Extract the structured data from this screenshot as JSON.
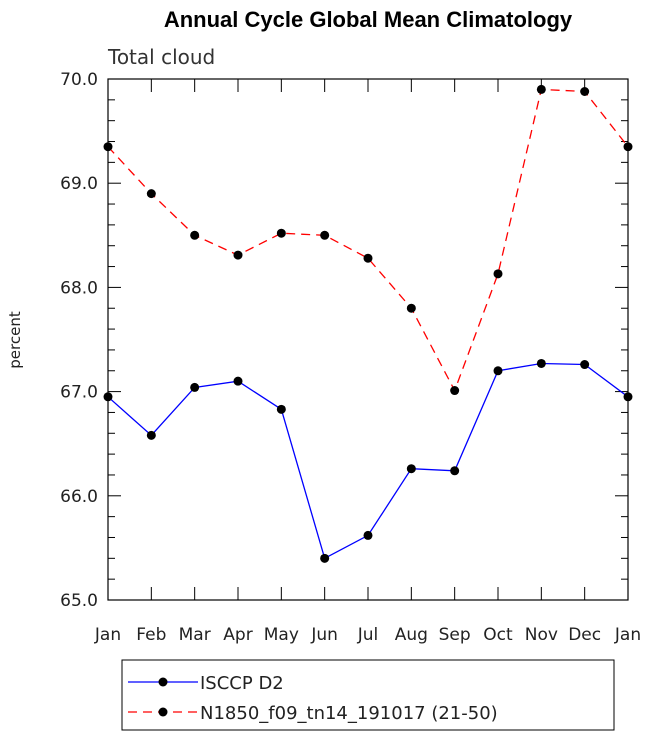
{
  "chart_data": {
    "type": "line",
    "title": "Annual Cycle Global Mean Climatology",
    "subtitle": "Total cloud",
    "xlabel": "",
    "ylabel": "percent",
    "ylim": [
      65.0,
      70.0
    ],
    "yticks": [
      "65.0",
      "66.0",
      "67.0",
      "68.0",
      "69.0",
      "70.0"
    ],
    "categories": [
      "Jan",
      "Feb",
      "Mar",
      "Apr",
      "May",
      "Jun",
      "Jul",
      "Aug",
      "Sep",
      "Oct",
      "Nov",
      "Dec",
      "Jan"
    ],
    "series": [
      {
        "name": "ISCCP D2",
        "color": "#0000ff",
        "dash": "solid",
        "values": [
          66.95,
          66.58,
          67.04,
          67.1,
          66.83,
          65.4,
          65.62,
          66.26,
          66.24,
          67.2,
          67.27,
          67.26,
          66.95
        ]
      },
      {
        "name": "N1850_f09_tn14_191017 (21-50)",
        "color": "#ff0000",
        "dash": "dashed",
        "values": [
          69.35,
          68.9,
          68.5,
          68.31,
          68.52,
          68.5,
          68.28,
          67.8,
          67.01,
          68.13,
          69.9,
          69.88,
          69.35
        ]
      }
    ]
  }
}
